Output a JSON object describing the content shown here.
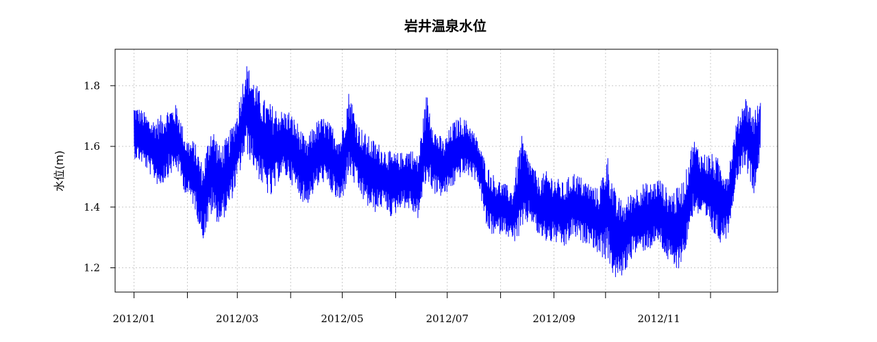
{
  "chart_data": {
    "type": "line",
    "title": "岩井温泉水位",
    "xlabel": "",
    "ylabel": "水位(m)",
    "ylim": [
      1.12,
      1.92
    ],
    "y_ticks": [
      1.2,
      1.4,
      1.6,
      1.8
    ],
    "y_tick_labels": [
      "1.2",
      "1.4",
      "1.6",
      "1.8"
    ],
    "x_range": [
      "2011-12-21",
      "2013-01-09"
    ],
    "x_ticks": [
      "2012-01-01",
      "2012-02-01",
      "2012-03-01",
      "2012-04-01",
      "2012-05-01",
      "2012-06-01",
      "2012-07-01",
      "2012-08-01",
      "2012-09-01",
      "2012-10-01",
      "2012-11-01",
      "2012-12-01"
    ],
    "x_tick_labels": [
      "2012/01",
      "2012/03",
      "2012/05",
      "2012/07",
      "2012/09",
      "2012/11"
    ],
    "x_tick_label_dates": [
      "2012-01-01",
      "2012-03-01",
      "2012-05-01",
      "2012-07-01",
      "2012-09-01",
      "2012-11-01"
    ],
    "grid": true,
    "series": [
      {
        "color": "#0000ff",
        "x": [
          "2012-01-01",
          "2012-01-06",
          "2012-01-11",
          "2012-01-16",
          "2012-01-21",
          "2012-01-26",
          "2012-01-31",
          "2012-02-05",
          "2012-02-10",
          "2012-02-15",
          "2012-02-20",
          "2012-02-25",
          "2012-03-01",
          "2012-03-06",
          "2012-03-11",
          "2012-03-16",
          "2012-03-21",
          "2012-03-26",
          "2012-03-31",
          "2012-04-05",
          "2012-04-10",
          "2012-04-15",
          "2012-04-20",
          "2012-04-25",
          "2012-04-30",
          "2012-05-05",
          "2012-05-10",
          "2012-05-15",
          "2012-05-20",
          "2012-05-25",
          "2012-05-30",
          "2012-06-04",
          "2012-06-09",
          "2012-06-14",
          "2012-06-19",
          "2012-06-24",
          "2012-06-29",
          "2012-07-04",
          "2012-07-09",
          "2012-07-14",
          "2012-07-19",
          "2012-07-24",
          "2012-07-29",
          "2012-08-03",
          "2012-08-08",
          "2012-08-13",
          "2012-08-18",
          "2012-08-23",
          "2012-08-28",
          "2012-09-02",
          "2012-09-07",
          "2012-09-12",
          "2012-09-17",
          "2012-09-22",
          "2012-09-27",
          "2012-10-02",
          "2012-10-07",
          "2012-10-12",
          "2012-10-17",
          "2012-10-22",
          "2012-10-27",
          "2012-11-01",
          "2012-11-06",
          "2012-11-11",
          "2012-11-16",
          "2012-11-21",
          "2012-11-26",
          "2012-12-01",
          "2012-12-06",
          "2012-12-11",
          "2012-12-16",
          "2012-12-21",
          "2012-12-26",
          "2012-12-30"
        ],
        "y_min": [
          1.56,
          1.54,
          1.5,
          1.46,
          1.5,
          1.52,
          1.44,
          1.4,
          1.29,
          1.37,
          1.34,
          1.39,
          1.48,
          1.58,
          1.52,
          1.46,
          1.42,
          1.5,
          1.49,
          1.44,
          1.4,
          1.45,
          1.48,
          1.44,
          1.4,
          1.5,
          1.45,
          1.4,
          1.38,
          1.4,
          1.36,
          1.4,
          1.39,
          1.36,
          1.48,
          1.44,
          1.43,
          1.46,
          1.5,
          1.5,
          1.48,
          1.32,
          1.3,
          1.32,
          1.28,
          1.3,
          1.36,
          1.3,
          1.28,
          1.28,
          1.26,
          1.3,
          1.28,
          1.28,
          1.24,
          1.22,
          1.15,
          1.18,
          1.24,
          1.25,
          1.26,
          1.28,
          1.22,
          1.18,
          1.24,
          1.38,
          1.36,
          1.32,
          1.28,
          1.3,
          1.48,
          1.54,
          1.44,
          1.56
        ],
        "y_max": [
          1.74,
          1.72,
          1.69,
          1.7,
          1.73,
          1.74,
          1.63,
          1.62,
          1.54,
          1.68,
          1.6,
          1.64,
          1.72,
          1.88,
          1.82,
          1.76,
          1.74,
          1.72,
          1.72,
          1.68,
          1.62,
          1.68,
          1.7,
          1.67,
          1.64,
          1.79,
          1.68,
          1.64,
          1.62,
          1.6,
          1.58,
          1.58,
          1.6,
          1.57,
          1.78,
          1.66,
          1.62,
          1.68,
          1.7,
          1.68,
          1.62,
          1.54,
          1.5,
          1.48,
          1.46,
          1.64,
          1.56,
          1.5,
          1.52,
          1.5,
          1.48,
          1.52,
          1.5,
          1.48,
          1.46,
          1.58,
          1.44,
          1.42,
          1.46,
          1.48,
          1.48,
          1.5,
          1.46,
          1.46,
          1.5,
          1.63,
          1.58,
          1.58,
          1.56,
          1.52,
          1.68,
          1.77,
          1.72,
          1.75
        ]
      }
    ]
  }
}
